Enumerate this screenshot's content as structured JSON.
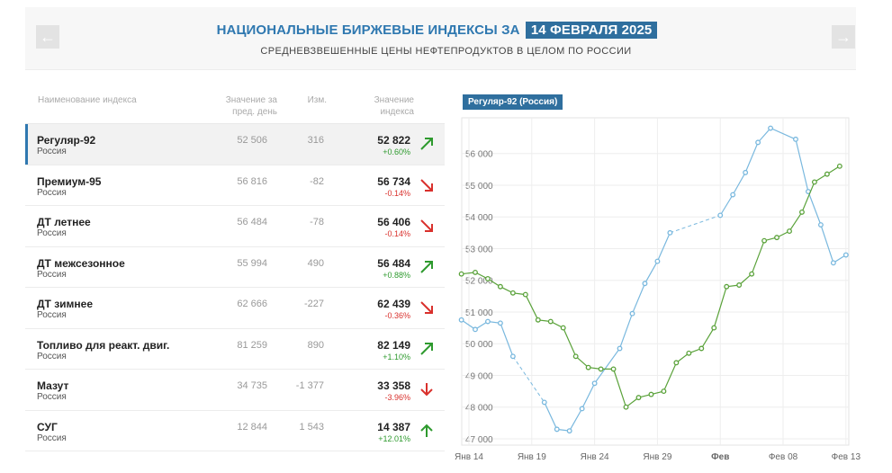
{
  "header": {
    "title": "НАЦИОНАЛЬНЫЕ БИРЖЕВЫЕ ИНДЕКСЫ ЗА",
    "date": "14 ФЕВРАЛЯ 2025",
    "subtitle": "СРЕДНЕВЗВЕШЕННЫЕ ЦЕНЫ НЕФТЕПРОДУКТОВ В ЦЕЛОМ ПО РОССИИ",
    "prev_icon": "arrow-left-icon",
    "next_icon": "arrow-right-icon"
  },
  "table": {
    "headers": {
      "name": "Наименование индекса",
      "prev": "Значение за пред. день",
      "change": "Изм.",
      "value": "Значение индекса"
    },
    "rows": [
      {
        "name": "Регуляр-92",
        "region": "Россия",
        "prev": "52 506",
        "change": "316",
        "value": "52 822",
        "pct": "+0.60%",
        "dir": "up"
      },
      {
        "name": "Премиум-95",
        "region": "Россия",
        "prev": "56 816",
        "change": "-82",
        "value": "56 734",
        "pct": "-0.14%",
        "dir": "down"
      },
      {
        "name": "ДТ летнее",
        "region": "Россия",
        "prev": "56 484",
        "change": "-78",
        "value": "56 406",
        "pct": "-0.14%",
        "dir": "down"
      },
      {
        "name": "ДТ межсезонное",
        "region": "Россия",
        "prev": "55 994",
        "change": "490",
        "value": "56 484",
        "pct": "+0.88%",
        "dir": "up"
      },
      {
        "name": "ДТ зимнее",
        "region": "Россия",
        "prev": "62 666",
        "change": "-227",
        "value": "62 439",
        "pct": "-0.36%",
        "dir": "down"
      },
      {
        "name": "Топливо для реакт. двиг.",
        "region": "Россия",
        "prev": "81 259",
        "change": "890",
        "value": "82 149",
        "pct": "+1.10%",
        "dir": "up"
      },
      {
        "name": "Мазут",
        "region": "Россия",
        "prev": "34 735",
        "change": "-1 377",
        "value": "33 358",
        "pct": "-3.96%",
        "dir": "down-strong"
      },
      {
        "name": "СУГ",
        "region": "Россия",
        "prev": "12 844",
        "change": "1 543",
        "value": "14 387",
        "pct": "+12.01%",
        "dir": "up-strong"
      }
    ]
  },
  "colors": {
    "accent": "#2f78b0",
    "badge": "#2f6f9e",
    "up": "#2e9a2e",
    "down": "#d9302c",
    "series_blue": "#79b8de",
    "series_green": "#5aa23a"
  },
  "chart_data": {
    "type": "line",
    "title": "Регуляр-92 (Россия)",
    "x_ticks": [
      "Янв 14",
      "Янв 19",
      "Янв 24",
      "Янв 29",
      "Фев",
      "Фев 08",
      "Фев 13"
    ],
    "x_tick_positions": [
      0,
      5,
      10,
      15,
      20,
      25,
      30
    ],
    "y_ticks": [
      "47 000",
      "48 000",
      "49 000",
      "50 000",
      "51 000",
      "52 000",
      "53 000",
      "54 000",
      "55 000",
      "56 000"
    ],
    "y_tick_values": [
      47000,
      48000,
      49000,
      50000,
      51000,
      52000,
      53000,
      54000,
      55000,
      56000
    ],
    "ylim": [
      46800,
      56900
    ],
    "xlim": [
      0,
      30.8
    ],
    "grid": true,
    "legend": "none",
    "series": [
      {
        "color": "#79b8de",
        "segments": [
          [
            [
              -0.6,
              50.75
            ],
            [
              0.5,
              50.45
            ],
            [
              1.5,
              50.7
            ],
            [
              2.5,
              50.65
            ],
            [
              3.5,
              49.6
            ]
          ],
          [
            [
              6,
              48.15
            ],
            [
              7,
              47.3
            ],
            [
              8,
              47.25
            ],
            [
              9,
              47.95
            ],
            [
              10,
              48.75
            ],
            [
              12,
              49.85
            ],
            [
              13,
              50.95
            ],
            [
              14,
              51.9
            ],
            [
              15,
              52.6
            ],
            [
              16,
              53.5
            ]
          ],
          [
            [
              20,
              54.05
            ],
            [
              21,
              54.7
            ],
            [
              22,
              55.4
            ],
            [
              23,
              56.35
            ],
            [
              24,
              56.8
            ],
            [
              26,
              56.45
            ],
            [
              27,
              54.8
            ],
            [
              28,
              53.75
            ],
            [
              29,
              52.55
            ],
            [
              30,
              52.8
            ]
          ]
        ]
      },
      {
        "color": "#5aa23a",
        "segments": [
          [
            [
              -0.6,
              52.2
            ],
            [
              0.5,
              52.25
            ],
            [
              1.5,
              52.05
            ],
            [
              2.5,
              51.8
            ],
            [
              3.5,
              51.6
            ],
            [
              4.5,
              51.55
            ],
            [
              5.5,
              50.75
            ],
            [
              6.5,
              50.7
            ],
            [
              7.5,
              50.5
            ],
            [
              8.5,
              49.6
            ],
            [
              9.5,
              49.25
            ],
            [
              10.5,
              49.2
            ],
            [
              11.5,
              49.2
            ],
            [
              12.5,
              48
            ],
            [
              13.5,
              48.3
            ],
            [
              14.5,
              48.4
            ],
            [
              15.5,
              48.5
            ],
            [
              16.5,
              49.4
            ],
            [
              17.5,
              49.7
            ],
            [
              18.5,
              49.85
            ],
            [
              19.5,
              50.5
            ],
            [
              20.5,
              51.8
            ],
            [
              21.5,
              51.85
            ],
            [
              22.5,
              52.2
            ],
            [
              23.5,
              53.25
            ],
            [
              24.5,
              53.35
            ],
            [
              25.5,
              53.55
            ],
            [
              26.5,
              54.15
            ],
            [
              27.5,
              55.1
            ],
            [
              28.5,
              55.35
            ],
            [
              29.5,
              55.6
            ]
          ]
        ]
      }
    ]
  }
}
